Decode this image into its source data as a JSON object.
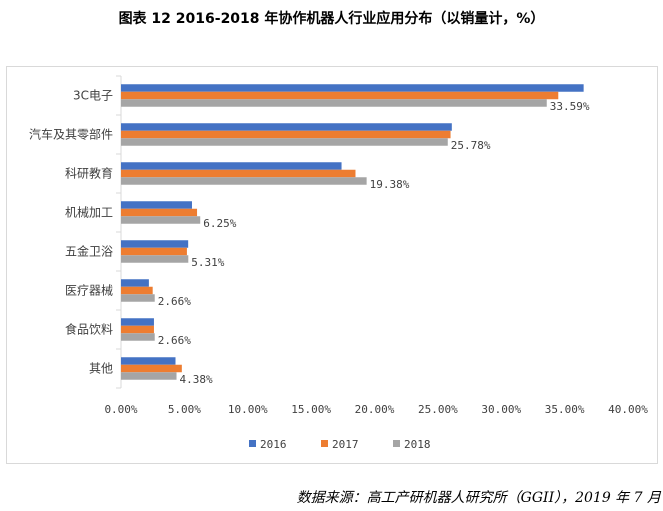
{
  "figure_title": "图表 12  2016-2018 年协作机器人行业应用分布（以销量计，%）",
  "source_note": "数据来源：高工产研机器人研究所（GGII），2019 年 7 月",
  "colors": {
    "series_2016": "#4472c4",
    "series_2017": "#ed7d31",
    "series_2018": "#a5a5a5",
    "axis": "#d9d9d9"
  },
  "chart_data": {
    "type": "bar",
    "orientation": "horizontal",
    "title": "",
    "xlabel": "",
    "ylabel": "",
    "xlim": [
      0,
      40
    ],
    "x_ticks": [
      0,
      5,
      10,
      15,
      20,
      25,
      30,
      35,
      40
    ],
    "x_tick_labels": [
      "0.00%",
      "5.00%",
      "10.00%",
      "15.00%",
      "20.00%",
      "25.00%",
      "30.00%",
      "35.00%",
      "40.00%"
    ],
    "grid": false,
    "legend_position": "bottom",
    "categories": [
      "3C电子",
      "汽车及其零部件",
      "科研教育",
      "机械加工",
      "五金卫浴",
      "医疗器械",
      "食品饮料",
      "其他"
    ],
    "series": [
      {
        "name": "2016",
        "values": [
          36.5,
          26.1,
          17.4,
          5.6,
          5.3,
          2.2,
          2.6,
          4.3
        ]
      },
      {
        "name": "2017",
        "values": [
          34.5,
          26.0,
          18.5,
          6.0,
          5.2,
          2.5,
          2.6,
          4.8
        ]
      },
      {
        "name": "2018",
        "values": [
          33.59,
          25.78,
          19.38,
          6.25,
          5.31,
          2.66,
          2.66,
          4.38
        ]
      }
    ],
    "data_labels": {
      "series": "2018",
      "labels": [
        "33.59%",
        "25.78%",
        "19.38%",
        "6.25%",
        "5.31%",
        "2.66%",
        "2.66%",
        "4.38%"
      ]
    }
  }
}
